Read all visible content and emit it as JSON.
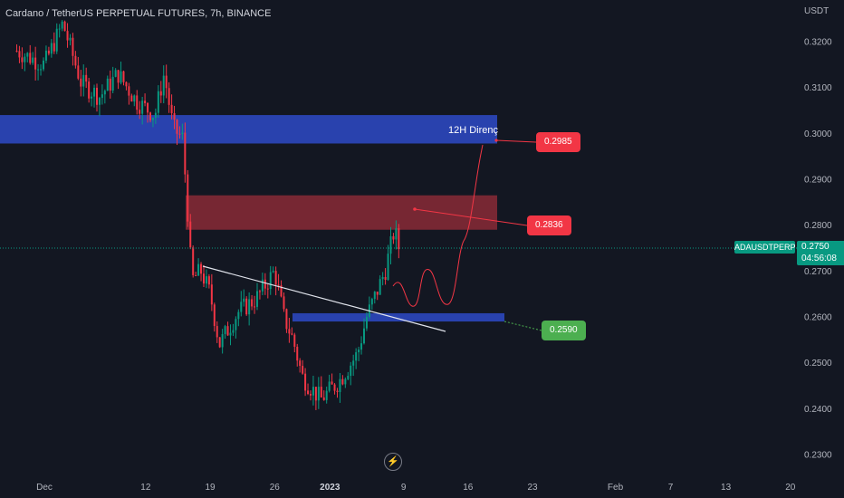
{
  "header": {
    "title": "Cardano / TetherUS PERPETUAL FUTURES, 7h, BINANCE",
    "currency": "USDT"
  },
  "colors": {
    "background": "#131722",
    "up": "#089981",
    "down": "#f23645",
    "resistance_zone": "#2a45b6",
    "supply_zone": "#8a2a36",
    "support_zone": "#2a45b6",
    "projection": "#f23645",
    "trendline": "#e0e3eb"
  },
  "price_tag": {
    "symbol": "ADAUSDTPERP",
    "price": "0.2750",
    "countdown": "04:56:08"
  },
  "annotations": {
    "zone_label": "12H Direnç",
    "callouts": [
      {
        "text": "0.2985",
        "color": "#f23645"
      },
      {
        "text": "0.2836",
        "color": "#f23645"
      },
      {
        "text": "0.2590",
        "color": "#4caf50"
      }
    ]
  },
  "logo": {
    "icon": "tradingview-bolt-icon"
  },
  "chart_data": {
    "type": "candlestick",
    "title": "Cardano / TetherUS PERPETUAL FUTURES, 7h, BINANCE",
    "interval": "7h",
    "y_axis": {
      "side": "right",
      "ylim": [
        0.2268,
        0.329
      ],
      "ticks": [
        "0.3200",
        "0.3100",
        "0.3000",
        "0.2900",
        "0.2800",
        "0.2700",
        "0.2600",
        "0.2500",
        "0.2400",
        "0.2300"
      ]
    },
    "x_axis": {
      "ticks": [
        {
          "label": "Dec",
          "date": "2022-12-01"
        },
        {
          "label": "12",
          "date": "2022-12-12"
        },
        {
          "label": "19",
          "date": "2022-12-19"
        },
        {
          "label": "26",
          "date": "2022-12-26"
        },
        {
          "label": "2023",
          "date": "2023-01-01",
          "bold": true
        },
        {
          "label": "9",
          "date": "2023-01-09"
        },
        {
          "label": "16",
          "date": "2023-01-16"
        },
        {
          "label": "23",
          "date": "2023-01-23"
        },
        {
          "label": "Feb",
          "date": "2023-02-01"
        },
        {
          "label": "7",
          "date": "2023-02-07"
        },
        {
          "label": "13",
          "date": "2023-02-13"
        },
        {
          "label": "20",
          "date": "2023-02-20"
        }
      ]
    },
    "price_path": [
      [
        "2022-11-28",
        0.318
      ],
      [
        "2022-12-01",
        0.315
      ],
      [
        "2022-12-03",
        0.324
      ],
      [
        "2022-12-05",
        0.311
      ],
      [
        "2022-12-07",
        0.308
      ],
      [
        "2022-12-09",
        0.313
      ],
      [
        "2022-12-11",
        0.307
      ],
      [
        "2022-12-13",
        0.304
      ],
      [
        "2022-12-14",
        0.313
      ],
      [
        "2022-12-15",
        0.301
      ],
      [
        "2022-12-16",
        0.299
      ],
      [
        "2022-12-16.5",
        0.285
      ],
      [
        "2022-12-17",
        0.268
      ],
      [
        "2022-12-18",
        0.27
      ],
      [
        "2022-12-19",
        0.265
      ],
      [
        "2022-12-20",
        0.254
      ],
      [
        "2022-12-22",
        0.261
      ],
      [
        "2022-12-24",
        0.264
      ],
      [
        "2022-12-26",
        0.27
      ],
      [
        "2022-12-27",
        0.26
      ],
      [
        "2022-12-28",
        0.255
      ],
      [
        "2022-12-29",
        0.247
      ],
      [
        "2022-12-31",
        0.242
      ],
      [
        "2023-01-01",
        0.244
      ],
      [
        "2023-01-02",
        0.246
      ],
      [
        "2023-01-03",
        0.249
      ],
      [
        "2023-01-04",
        0.252
      ],
      [
        "2023-01-05",
        0.26
      ],
      [
        "2023-01-06",
        0.265
      ],
      [
        "2023-01-07",
        0.27
      ],
      [
        "2023-01-08",
        0.279
      ],
      [
        "2023-01-08.5",
        0.275
      ]
    ],
    "levels": [
      {
        "label": "0.2985",
        "value": 0.2985
      },
      {
        "label": "0.2836",
        "value": 0.2836
      },
      {
        "label": "0.2590",
        "value": 0.259
      }
    ],
    "zones": [
      {
        "name": "12H Direnç",
        "from": 0.2978,
        "to": 0.304
      },
      {
        "from": 0.279,
        "to": 0.2865
      },
      {
        "from": 0.259,
        "to": 0.2608
      }
    ],
    "last_price": 0.275,
    "grid": false
  }
}
